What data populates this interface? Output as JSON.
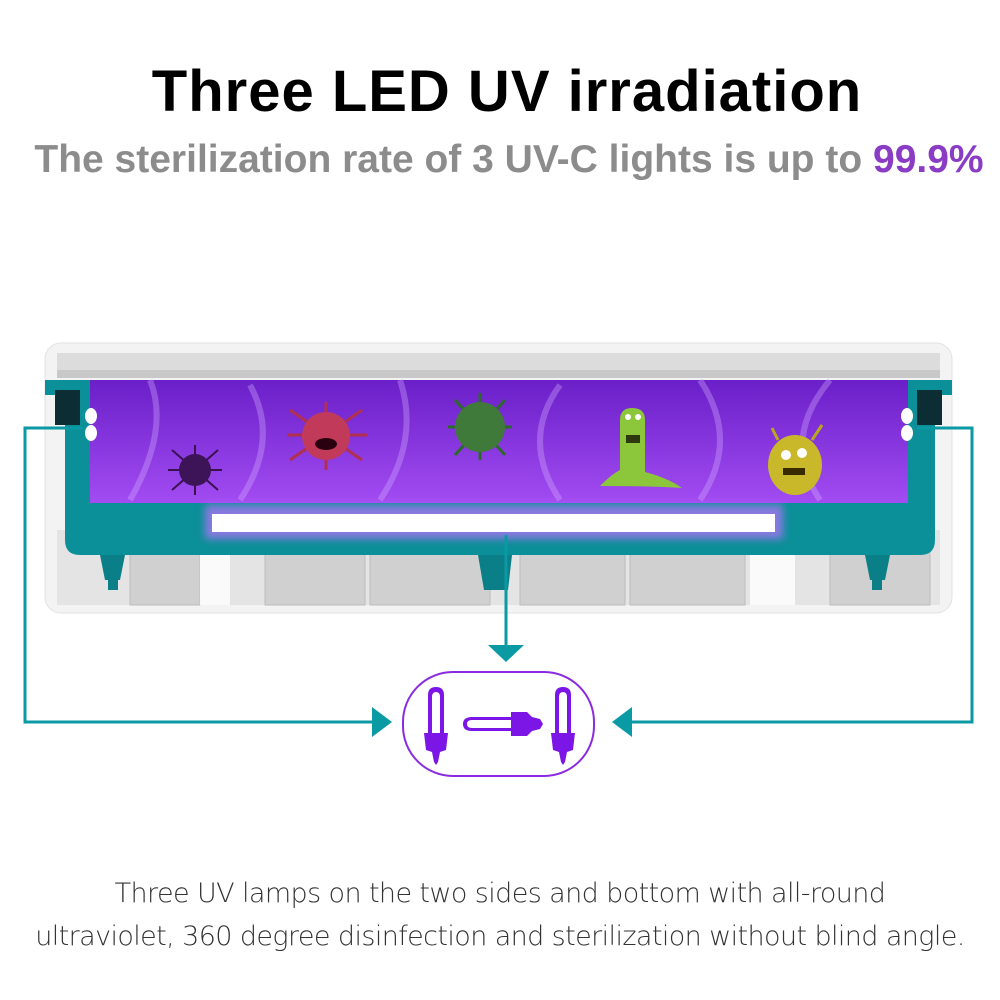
{
  "title": "Three LED UV irradiation",
  "subtitle": {
    "text": "The sterilization rate of 3 UV-C lights is up to ",
    "highlight": "99.9%"
  },
  "description": {
    "line1": "Three UV lamps on the two sides and bottom with all-round",
    "line2": "ultraviolet, 360 degree disinfection and sterilization without blind angle."
  },
  "colors": {
    "accent_teal": "#0a9aa3",
    "uv_purple": "#7b16e6",
    "highlight_purple": "#8a3cc4",
    "subtitle_gray": "#8c8c8c"
  },
  "icons": [
    "virus-icon",
    "uv-lamp-icon",
    "arrow-icon"
  ]
}
